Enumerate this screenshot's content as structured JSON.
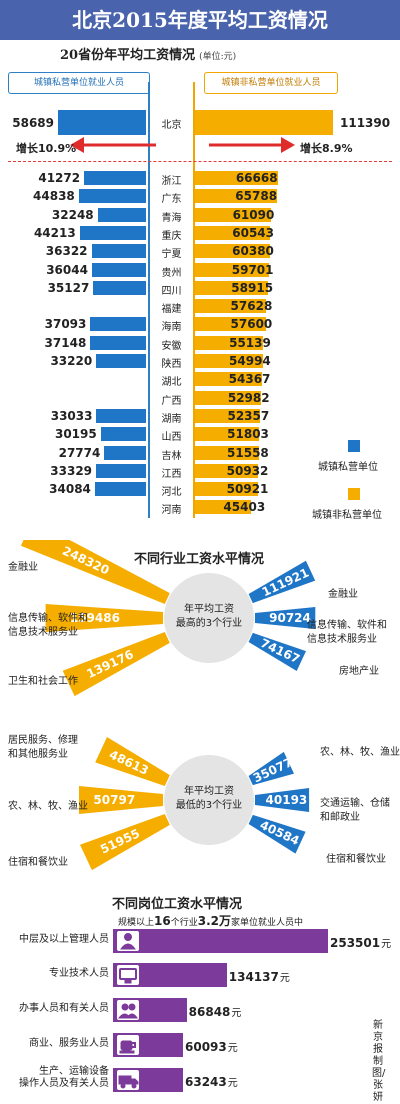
{
  "title": "北京2015年度平均工资情况",
  "colors": {
    "banner": "#4a63ad",
    "private": "#1f75c6",
    "nonprivate": "#f5ad00",
    "growth_arrow": "#e02b2b",
    "industry_high": "#f5ad00",
    "industry_low": "#1f75c6",
    "job": "#7c3a9a"
  },
  "chart_data": [
    {
      "type": "bar",
      "title": "20省份年平均工资情况",
      "unit": "(单位:元)",
      "left_header": "城镇私营单位就业人员",
      "right_header": "城镇非私营单位就业人员",
      "beijing": {
        "name": "北京",
        "private": 58689,
        "nonprivate": 111390,
        "growth_private": "增长10.9%",
        "growth_nonprivate": "增长8.9%"
      },
      "categories": [
        "浙江",
        "广东",
        "青海",
        "重庆",
        "宁夏",
        "贵州",
        "四川",
        "福建",
        "海南",
        "安徽",
        "陕西",
        "湖北",
        "广西",
        "湖南",
        "山西",
        "吉林",
        "江西",
        "河北",
        "河南"
      ],
      "series": [
        {
          "name": "城镇私营单位",
          "values": [
            41272,
            44838,
            32248,
            44213,
            36322,
            36044,
            35127,
            null,
            37093,
            37148,
            33220,
            null,
            null,
            33033,
            30195,
            27774,
            33329,
            34084,
            null
          ]
        },
        {
          "name": "城镇非私营单位",
          "values": [
            66668,
            65788,
            61090,
            60543,
            60380,
            59701,
            58915,
            57628,
            57600,
            55139,
            54994,
            54367,
            52982,
            52357,
            51803,
            51558,
            50932,
            50921,
            45403
          ]
        }
      ]
    },
    {
      "type": "bar",
      "title": "不同行业工资水平情况",
      "center_high": [
        "年平均工资",
        "最高的3个行业"
      ],
      "center_low": [
        "年平均工资",
        "最低的3个行业"
      ],
      "high_private": [
        {
          "label": [
            "金融业"
          ],
          "value": 248320
        },
        {
          "label": [
            "信息传输、软件和",
            "信息技术服务业"
          ],
          "value": 159486
        },
        {
          "label": [
            "卫生和社会工作"
          ],
          "value": 139176
        }
      ],
      "high_nonprivate": [
        {
          "label": [
            "金融业"
          ],
          "value": 111921
        },
        {
          "label": [
            "信息传输、软件和",
            "信息技术服务业"
          ],
          "value": 90724
        },
        {
          "label": [
            "房地产业"
          ],
          "value": 74167
        }
      ],
      "low_left": [
        {
          "label": [
            "居民服务、修理",
            "和其他服务业"
          ],
          "value": 48613
        },
        {
          "label": [
            "农、林、牧、渔业"
          ],
          "value": 50797
        },
        {
          "label": [
            "住宿和餐饮业"
          ],
          "value": 51955
        }
      ],
      "low_right": [
        {
          "label": [
            "农、林、牧、渔业"
          ],
          "value": 35077
        },
        {
          "label": [
            "交通运输、仓储",
            "和邮政业"
          ],
          "value": 40193
        },
        {
          "label": [
            "住宿和餐饮业"
          ],
          "value": 40584
        }
      ]
    },
    {
      "type": "bar",
      "title": "不同岗位工资水平情况",
      "subtitle_parts": [
        "规模以上",
        "16",
        "个行业",
        "3.2万",
        "家单位就业人员中"
      ],
      "unit_suffix": "元",
      "categories": [
        [
          "中层及以上管理人员"
        ],
        [
          "专业技术人员"
        ],
        [
          "办事人员和有关人员"
        ],
        [
          "商业、服务业人员"
        ],
        [
          "生产、运输设备",
          "操作人员及有关人员"
        ]
      ],
      "values": [
        253501,
        134137,
        86848,
        60093,
        63243
      ],
      "icons": [
        "manager-icon",
        "computer-icon",
        "people-icon",
        "cup-icon",
        "truck-icon"
      ]
    }
  ],
  "credit": "新京报制图/张妍"
}
